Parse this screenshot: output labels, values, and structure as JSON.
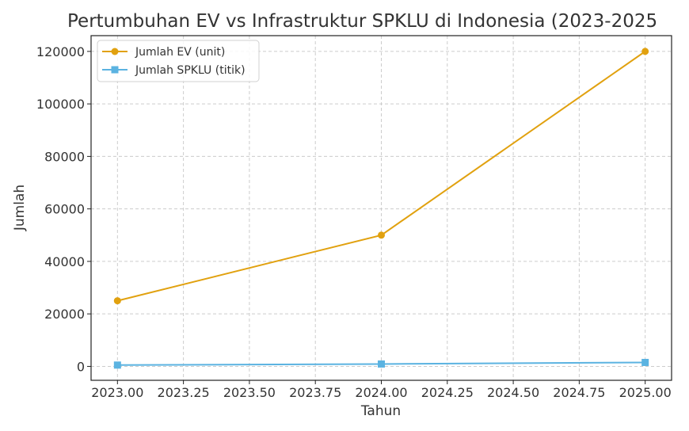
{
  "chart_data": {
    "type": "line",
    "title": "Pertumbuhan EV vs Infrastruktur SPKLU di Indonesia (2023-2025",
    "xlabel": "Tahun",
    "ylabel": "Jumlah",
    "x": [
      2023,
      2024,
      2025
    ],
    "xlim": [
      2022.9,
      2025.1
    ],
    "ylim": [
      -5300,
      126000
    ],
    "x_ticks": [
      2023.0,
      2023.25,
      2023.5,
      2023.75,
      2024.0,
      2024.25,
      2024.5,
      2024.75,
      2025.0
    ],
    "x_tick_labels": [
      "2023.00",
      "2023.25",
      "2023.50",
      "2023.75",
      "2024.00",
      "2024.25",
      "2024.50",
      "2024.75",
      "2025.00"
    ],
    "y_ticks": [
      0,
      20000,
      40000,
      60000,
      80000,
      100000,
      120000
    ],
    "y_tick_labels": [
      "0",
      "20000",
      "40000",
      "60000",
      "80000",
      "100000",
      "120000"
    ],
    "grid": true,
    "legend_position": "top-left",
    "series": [
      {
        "name": "Jumlah EV (unit)",
        "values": [
          25000,
          50000,
          120000
        ],
        "color": "#E1A10F",
        "marker": "circle"
      },
      {
        "name": "Jumlah SPKLU (titik)",
        "values": [
          500,
          900,
          1500
        ],
        "color": "#5BB3E1",
        "marker": "square"
      }
    ]
  }
}
